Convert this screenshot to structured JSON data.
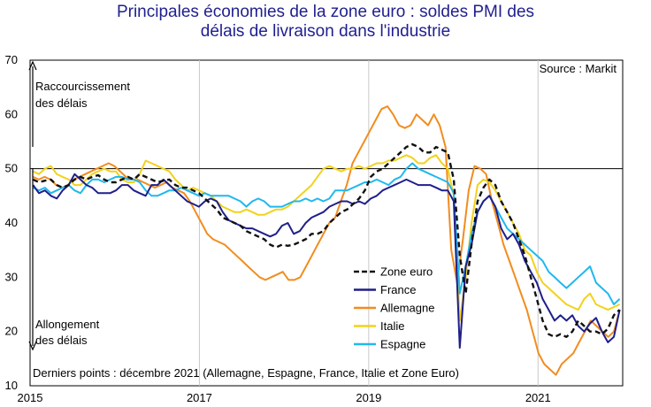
{
  "title_line1": "Principales économies de la zone euro : soldes PMI des",
  "title_line2": "délais de livraison dans l'industrie",
  "source": "Source : Markit",
  "annotation_top_line1": "Raccourcissement",
  "annotation_top_line2": "des délais",
  "annotation_bottom_line1": "Allongement",
  "annotation_bottom_line2": "des délais",
  "footnote": "Derniers points : décembre 2021 (Allemagne, Espagne, France, Italie et Zone Euro)",
  "chart_data": {
    "type": "line",
    "title": "Principales économies de la zone euro : soldes PMI des délais de livraison dans l'industrie",
    "x_start": "2015-01",
    "x_end": "2021-12",
    "x_ticks": [
      "2015",
      "2017",
      "2019",
      "2021"
    ],
    "ylim": [
      10,
      70
    ],
    "y_ticks": [
      10,
      20,
      30,
      40,
      50,
      60,
      70
    ],
    "reference_line": 50,
    "grid": false,
    "legend_position": "bottom-center",
    "series": [
      {
        "name": "Zone euro",
        "color": "#111111",
        "dash": "dashed",
        "values": [
          48,
          47.5,
          47.8,
          48,
          47,
          46.5,
          47,
          48,
          48.5,
          48,
          48.5,
          48.8,
          48,
          47.5,
          47.5,
          48,
          48.5,
          48,
          49,
          48.5,
          48,
          47.5,
          47.8,
          48,
          47,
          46.5,
          46.5,
          46,
          45.5,
          44.5,
          43.5,
          42.5,
          41,
          40.5,
          40,
          39.5,
          38.5,
          38,
          37.5,
          37,
          36,
          35.5,
          36,
          35.8,
          36,
          36.5,
          37,
          38,
          38,
          38.5,
          40,
          41,
          42,
          42.5,
          43.5,
          44.5,
          46,
          48.5,
          49.5,
          50,
          51,
          52,
          53,
          54,
          54.5,
          54,
          53,
          53,
          54,
          53.5,
          53,
          48,
          34,
          27,
          36,
          44,
          46.5,
          48,
          47,
          44,
          42,
          40,
          37,
          34,
          30,
          26,
          22,
          19.5,
          19,
          19.5,
          19,
          20,
          22,
          21,
          20,
          20,
          19.5,
          20.5,
          23,
          24
        ]
      },
      {
        "name": "France",
        "color": "#1f1f8a",
        "dash": "solid",
        "values": [
          47,
          45.5,
          46,
          45,
          44.5,
          46,
          47,
          49,
          48,
          47,
          46.5,
          45.5,
          45.5,
          45.5,
          46,
          47,
          47,
          46,
          45.5,
          45,
          47,
          47,
          48,
          47,
          46,
          45,
          44,
          43.5,
          43,
          44,
          44.5,
          44,
          42,
          40.5,
          40,
          39.5,
          39,
          39,
          38.5,
          38,
          37.5,
          38,
          39.5,
          40,
          38,
          38.5,
          40,
          41,
          41.5,
          42,
          43,
          43.5,
          44,
          44,
          43.5,
          44,
          43.5,
          44.5,
          45,
          46,
          46.5,
          47,
          47.5,
          48,
          47.5,
          47,
          47,
          47,
          46.5,
          46,
          46,
          44,
          17,
          32,
          36,
          42,
          44,
          45,
          43,
          39,
          37,
          38,
          36,
          33,
          31,
          29,
          26,
          24,
          22,
          23,
          22,
          23,
          21,
          20,
          21.5,
          22.5,
          20,
          18,
          19,
          24
        ]
      },
      {
        "name": "Allemagne",
        "color": "#f28c1e",
        "dash": "solid",
        "values": [
          48.5,
          48,
          48.5,
          48,
          47,
          46.5,
          47,
          48,
          48.5,
          49,
          49.5,
          50,
          50.5,
          51,
          50.5,
          49.5,
          48.5,
          48,
          48,
          47.5,
          47,
          46.5,
          47,
          47.5,
          46.5,
          46,
          45.5,
          44,
          42,
          40,
          38,
          37,
          36.5,
          36,
          35,
          34,
          33,
          32,
          31,
          30,
          29.5,
          30,
          30.5,
          31,
          29.5,
          29.5,
          30,
          32,
          34,
          36,
          38,
          40,
          41,
          44,
          47,
          51,
          53,
          55,
          57,
          59,
          61,
          61.5,
          60,
          58,
          57.5,
          58,
          60,
          59,
          58,
          60,
          58,
          54,
          35,
          29,
          37,
          46,
          50.5,
          50,
          49,
          44,
          40,
          36,
          33,
          30,
          27,
          24,
          20,
          16,
          14,
          13,
          12,
          14,
          15,
          16,
          18,
          20,
          22,
          21,
          20,
          19,
          20,
          24
        ]
      },
      {
        "name": "Italie",
        "color": "#f2d21c",
        "dash": "solid",
        "values": [
          49.5,
          49,
          50,
          50.5,
          49,
          48.5,
          48,
          47,
          47,
          48,
          49,
          49.5,
          50,
          49.5,
          49.5,
          48,
          47.5,
          47.5,
          49,
          51.5,
          51,
          50.5,
          50,
          49.5,
          48,
          47,
          46,
          46.5,
          46,
          45.5,
          45,
          44,
          43,
          42.5,
          42,
          42,
          42.5,
          42,
          41.5,
          41.5,
          42,
          42.5,
          42.5,
          43,
          44,
          45,
          46,
          47,
          48.5,
          50,
          50.5,
          50,
          49.5,
          50,
          50,
          50.5,
          50,
          50.5,
          51,
          51,
          51.5,
          51.5,
          52,
          52.5,
          52,
          51,
          51,
          52,
          52.5,
          51,
          50,
          45,
          22,
          30,
          40,
          47,
          48,
          47.5,
          46,
          44,
          42,
          40,
          38,
          35,
          34,
          31,
          29,
          28,
          27,
          26,
          25,
          24.5,
          24,
          26,
          27,
          25,
          24.5,
          24,
          24.5,
          25
        ]
      },
      {
        "name": "Espagne",
        "color": "#20b8ee",
        "dash": "solid",
        "values": [
          46.5,
          46,
          46.5,
          45.5,
          46,
          46.5,
          47,
          46,
          45.5,
          47,
          48,
          48,
          47.5,
          48,
          48.5,
          48.5,
          48,
          48,
          47.5,
          46,
          45,
          45,
          45.5,
          46,
          46,
          46.5,
          46,
          45.5,
          45,
          45.5,
          45,
          45,
          45,
          45,
          44.5,
          44,
          43,
          44,
          44.5,
          44,
          43,
          43,
          43,
          43.5,
          44,
          44,
          44.5,
          44,
          44.5,
          44,
          44.5,
          46,
          46,
          46,
          46.5,
          47,
          47.5,
          47.5,
          48,
          47.5,
          47,
          48,
          48.5,
          50,
          51,
          50,
          49.5,
          49,
          48.5,
          48,
          47.5,
          45.5,
          27,
          32,
          38,
          42,
          44,
          45,
          43,
          41,
          39,
          38,
          37,
          36,
          35,
          34,
          33,
          31,
          30,
          29,
          28,
          29,
          30,
          31,
          32,
          29,
          28,
          27,
          25,
          26
        ]
      }
    ]
  }
}
